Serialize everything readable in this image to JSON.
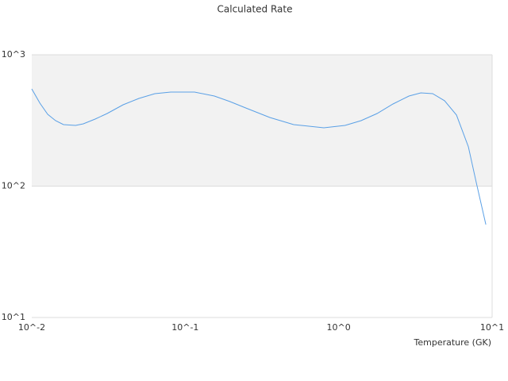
{
  "chart_data": {
    "type": "line",
    "title": "Calculated Rate",
    "x_label": "Temperature (GK)",
    "x_log": true,
    "y_log": true,
    "grid": true,
    "shaded_range": [
      100,
      1000
    ],
    "shaded_color": "#f2f2f2",
    "xlim": [
      0.01,
      10
    ],
    "ylim": [
      10,
      1000
    ],
    "xticks": [
      {
        "value": 0.01,
        "label": "10^-2"
      },
      {
        "value": 0.1,
        "label": "10^-1"
      },
      {
        "value": 1,
        "label": "10^0"
      },
      {
        "value": 10,
        "label": "10^1"
      }
    ],
    "yticks": [
      {
        "value": 10,
        "label": "10^1"
      },
      {
        "value": 100,
        "label": "10^2"
      },
      {
        "value": 1000,
        "label": "10^3"
      }
    ],
    "series": [
      {
        "color": "#5aa0e6",
        "x": [
          0.01,
          0.0113,
          0.0127,
          0.0143,
          0.0161,
          0.0193,
          0.0217,
          0.0259,
          0.031,
          0.0394,
          0.0499,
          0.0634,
          0.0804,
          0.115,
          0.155,
          0.196,
          0.249,
          0.356,
          0.509,
          0.801,
          1.1,
          1.4,
          1.78,
          2.26,
          2.87,
          3.43,
          4.1,
          4.9,
          5.86,
          7.0,
          7.89,
          9.1
        ],
        "values": [
          550,
          428,
          352,
          315,
          294,
          290,
          298,
          324,
          357,
          416,
          465,
          506,
          520,
          520,
          485,
          440,
          393,
          333,
          294,
          278,
          290,
          315,
          357,
          422,
          485,
          513,
          506,
          447,
          348,
          199,
          106,
          51
        ]
      }
    ]
  }
}
